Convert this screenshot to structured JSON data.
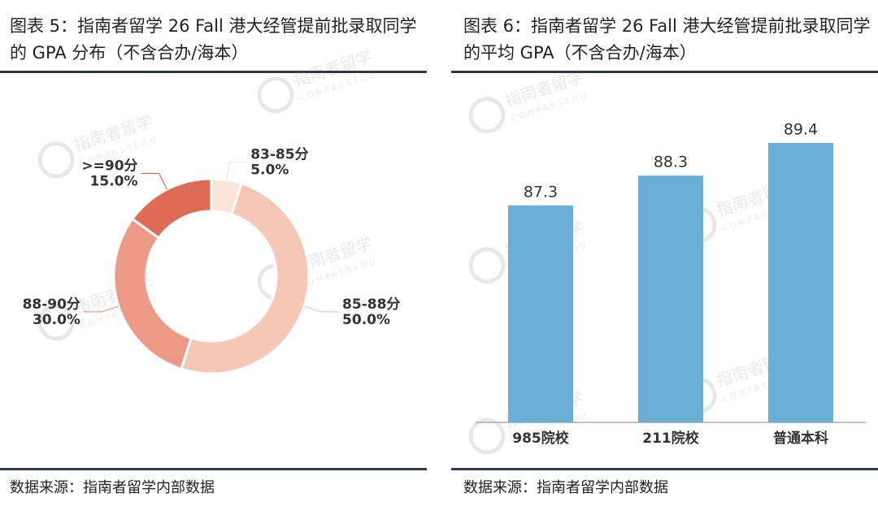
{
  "chart_data": [
    {
      "type": "donut",
      "title": "图表 5：指南者留学 26 Fall 港大经管提前批录取同学的 GPA 分布（不含合办/海本）",
      "source": "数据来源：指南者留学内部数据",
      "categories": [
        "83-85分",
        "85-88分",
        "88-90分",
        ">=90分"
      ],
      "values": [
        5,
        50,
        30,
        15
      ],
      "value_labels": [
        "5.0%",
        "50.0%",
        "30.0%",
        "15.0%"
      ],
      "colors": [
        "#fbe3d9",
        "#f6c6b6",
        "#ec9a86",
        "#de6b56"
      ]
    },
    {
      "type": "bar",
      "title": "图表 6：指南者留学 26 Fall 港大经管提前批录取同学的平均 GPA（不含合办/海本）",
      "source": "数据来源：指南者留学内部数据",
      "categories": [
        "985院校",
        "211院校",
        "普通本科"
      ],
      "values": [
        87.3,
        88.3,
        89.4
      ],
      "color": "#6baed6",
      "ylim": [
        80,
        90
      ]
    }
  ],
  "watermark": {
    "name": "指南者留学",
    "sub": "COMPASSEDU"
  }
}
